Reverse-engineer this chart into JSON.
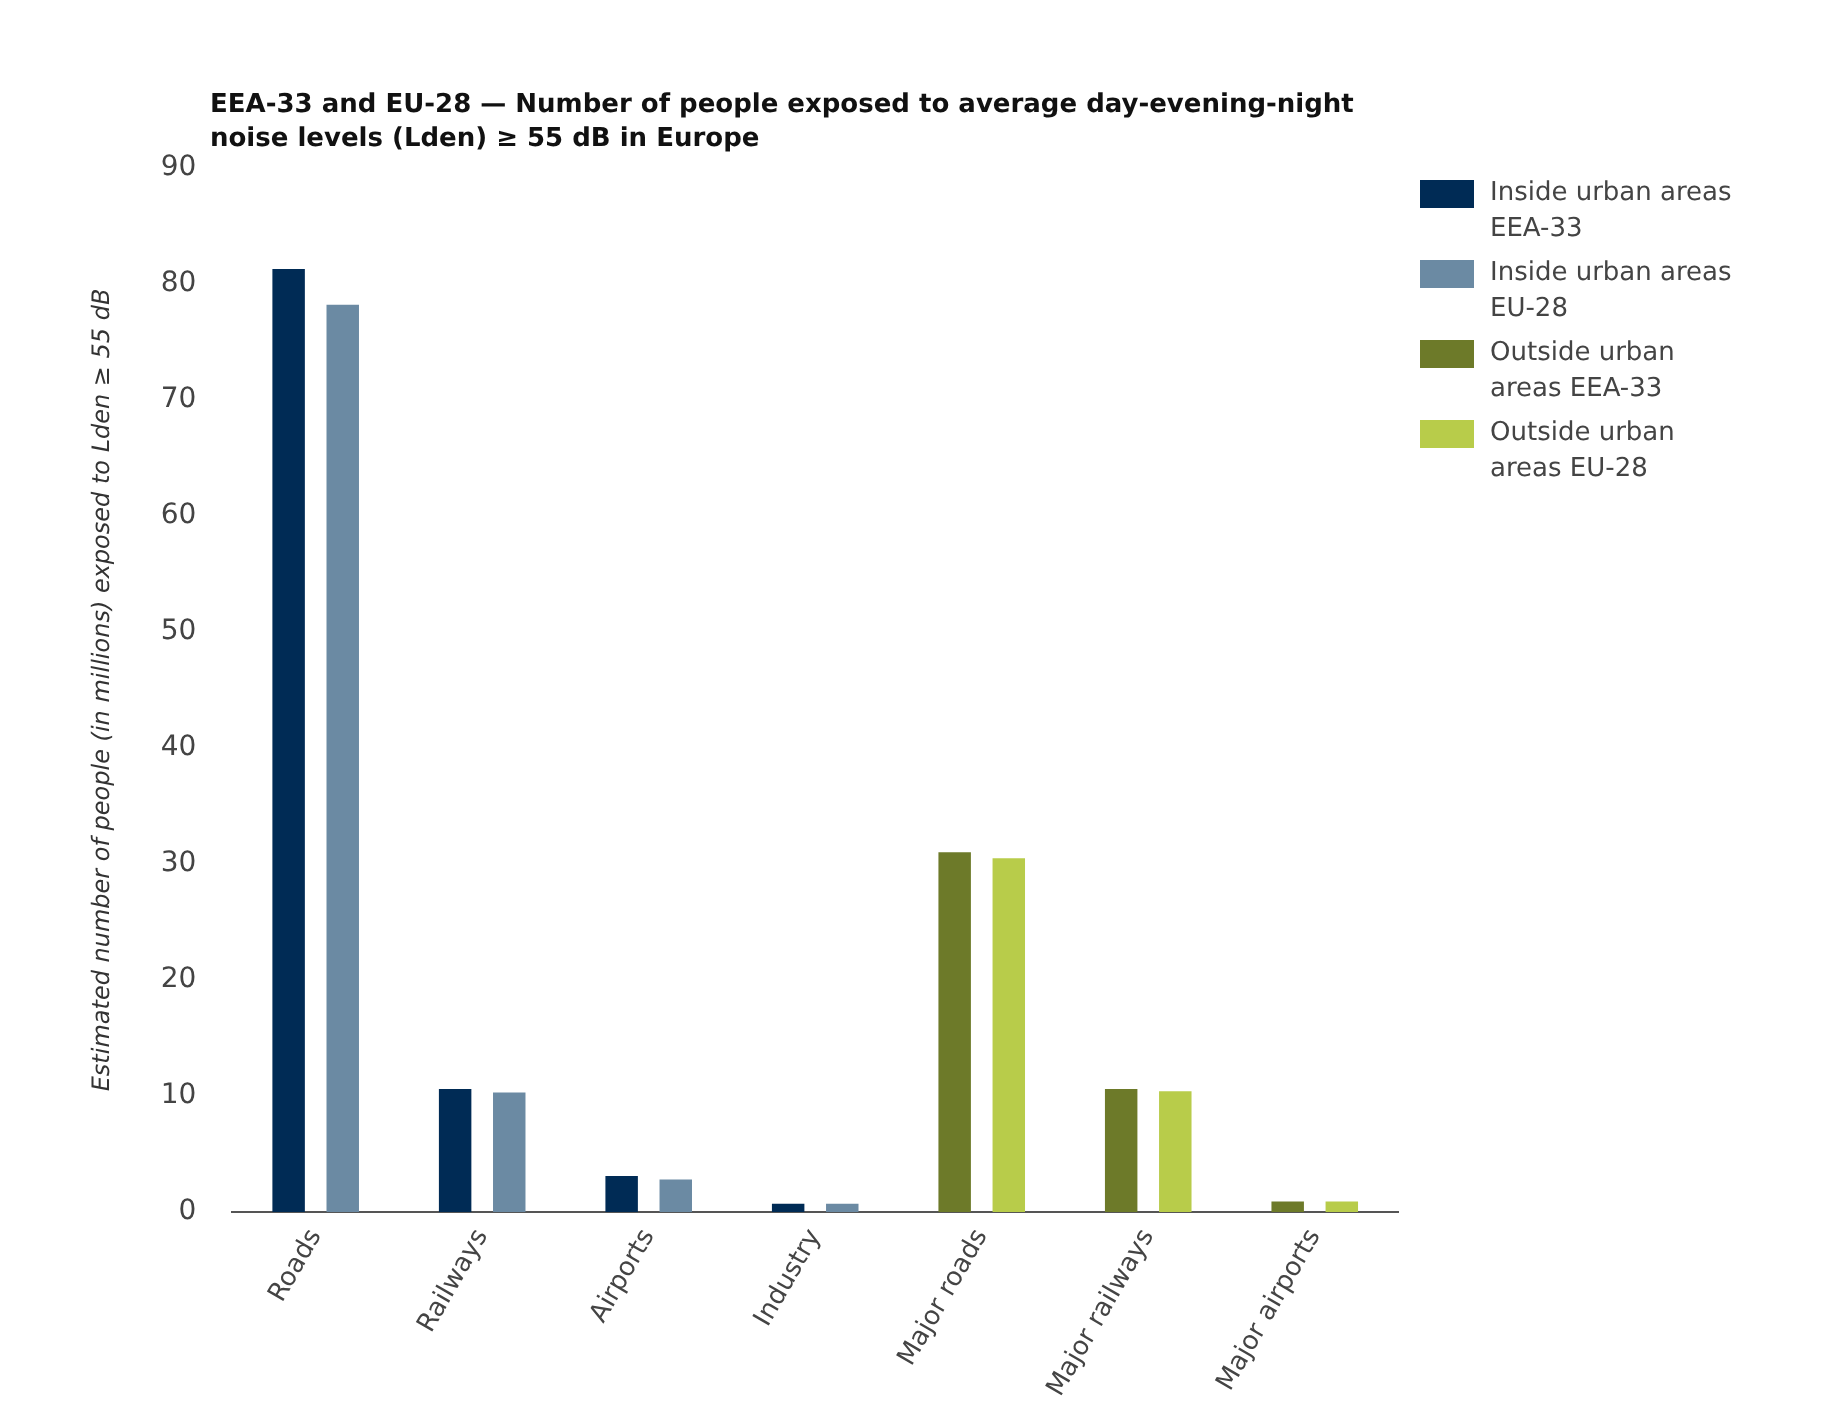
{
  "chart_data": {
    "type": "bar",
    "title": "EEA-33 and EU-28 — Number of people exposed to average day-evening-night noise levels (Lden) ≥ 55 dB in Europe",
    "ylabel": "Estimated number of people (in millions) exposed to Lden ≥ 55 dB",
    "categories": [
      "Roads",
      "Railways",
      "Airports",
      "Industry",
      "Major roads",
      "Major railways",
      "Major airports"
    ],
    "series": [
      {
        "name": "Inside urban areas EEA-33",
        "color": "#002b55",
        "values": [
          81.3,
          10.6,
          3.1,
          0.7,
          null,
          null,
          null
        ]
      },
      {
        "name": "Inside urban areas EU-28",
        "color": "#6b8aa3",
        "values": [
          78.2,
          10.3,
          2.8,
          0.7,
          null,
          null,
          null
        ]
      },
      {
        "name": "Outside urban areas EEA-33",
        "color": "#6d7a29",
        "values": [
          null,
          null,
          null,
          null,
          31.0,
          10.6,
          0.9
        ]
      },
      {
        "name": "Outside urban areas EU-28",
        "color": "#b8cc4a",
        "values": [
          null,
          null,
          null,
          null,
          30.5,
          10.4,
          0.9
        ]
      }
    ],
    "ylim": [
      0,
      90
    ],
    "yticks": [
      0,
      10,
      20,
      30,
      40,
      50,
      60,
      70,
      80,
      90
    ],
    "grid": false,
    "legend": "top right"
  }
}
